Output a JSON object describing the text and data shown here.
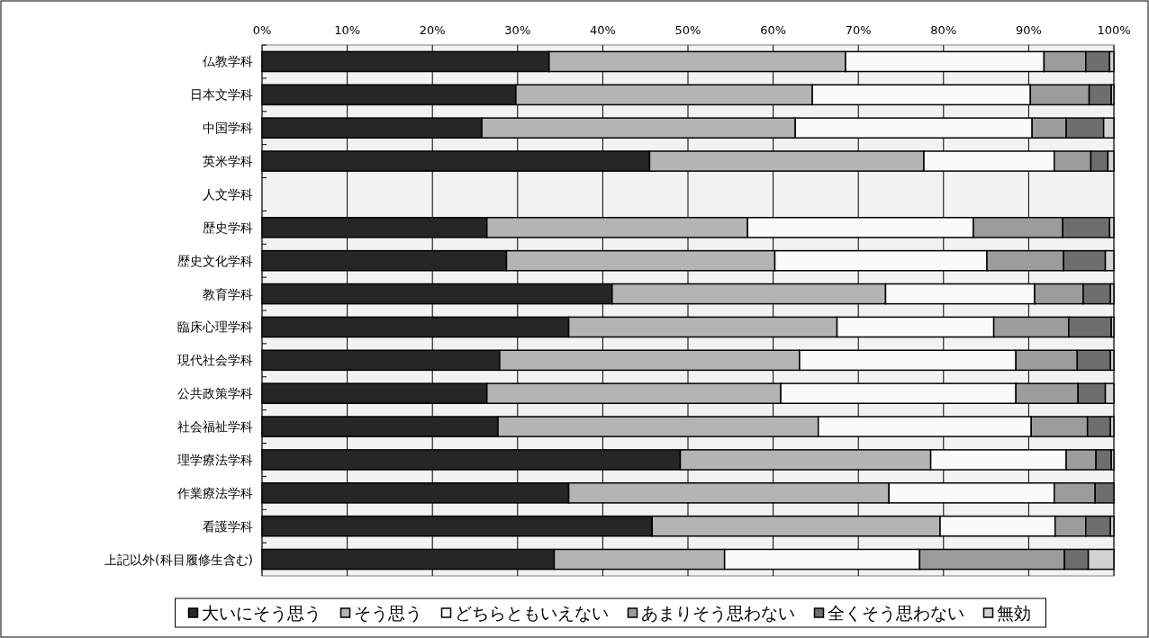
{
  "chart_data": {
    "type": "bar",
    "orientation": "horizontal",
    "stacked": true,
    "categories": [
      "仏教学科",
      "日本文学科",
      "中国学科",
      "英米学科",
      "人文学科",
      "歴史学科",
      "歴史文化学科",
      "教育学科",
      "臨床心理学科",
      "現代社会学科",
      "公共政策学科",
      "社会福祉学科",
      "理学療法学科",
      "作業療法学科",
      "看護学科",
      "上記以外(科目履修生含む)"
    ],
    "series": [
      {
        "name": "大いにそう思う",
        "color": "#262626",
        "values": [
          33.7,
          29.8,
          25.8,
          45.5,
          0,
          26.4,
          28.7,
          41.1,
          36.0,
          27.9,
          26.4,
          27.7,
          49.1,
          36.0,
          45.8,
          34.3
        ]
      },
      {
        "name": "そう思う",
        "color": "#b4b4b4",
        "values": [
          34.8,
          34.8,
          36.8,
          32.2,
          0,
          30.6,
          31.5,
          32.1,
          31.5,
          35.2,
          34.5,
          37.6,
          29.4,
          37.6,
          33.8,
          20.0
        ]
      },
      {
        "name": "どちらともいえない",
        "color": "#fafafa",
        "values": [
          23.3,
          25.6,
          27.8,
          15.3,
          0,
          26.5,
          24.9,
          17.5,
          18.4,
          25.4,
          27.6,
          25.0,
          15.9,
          19.4,
          13.5,
          22.9
        ]
      },
      {
        "name": "あまりそう思わない",
        "color": "#9c9c9c",
        "values": [
          4.9,
          6.9,
          4.0,
          4.3,
          0,
          10.5,
          9.0,
          5.7,
          8.8,
          7.2,
          7.3,
          6.6,
          3.5,
          4.8,
          3.6,
          17.0
        ]
      },
      {
        "name": "全くそう思わない",
        "color": "#6e6e6e",
        "values": [
          2.8,
          2.6,
          4.4,
          2.0,
          0,
          5.5,
          4.9,
          3.2,
          5.0,
          3.9,
          3.2,
          2.7,
          1.8,
          2.2,
          2.9,
          2.8
        ]
      },
      {
        "name": "無効",
        "color": "#d2d2d2",
        "values": [
          0.5,
          0.3,
          1.2,
          0.7,
          0,
          0.5,
          1.0,
          0.4,
          0.3,
          0.4,
          1.0,
          0.4,
          0.3,
          0,
          0.4,
          3.0
        ]
      }
    ],
    "xlim": [
      0,
      100
    ],
    "xticks": [
      {
        "value": 0,
        "label": "0%"
      },
      {
        "value": 10,
        "label": "10%"
      },
      {
        "value": 20,
        "label": "20%"
      },
      {
        "value": 30,
        "label": "30%"
      },
      {
        "value": 40,
        "label": "40%"
      },
      {
        "value": 50,
        "label": "50%"
      },
      {
        "value": 60,
        "label": "60%"
      },
      {
        "value": 70,
        "label": "70%"
      },
      {
        "value": 80,
        "label": "80%"
      },
      {
        "value": 90,
        "label": "90%"
      },
      {
        "value": 100,
        "label": "100%"
      }
    ],
    "grid": "x",
    "legend": "bottom"
  }
}
